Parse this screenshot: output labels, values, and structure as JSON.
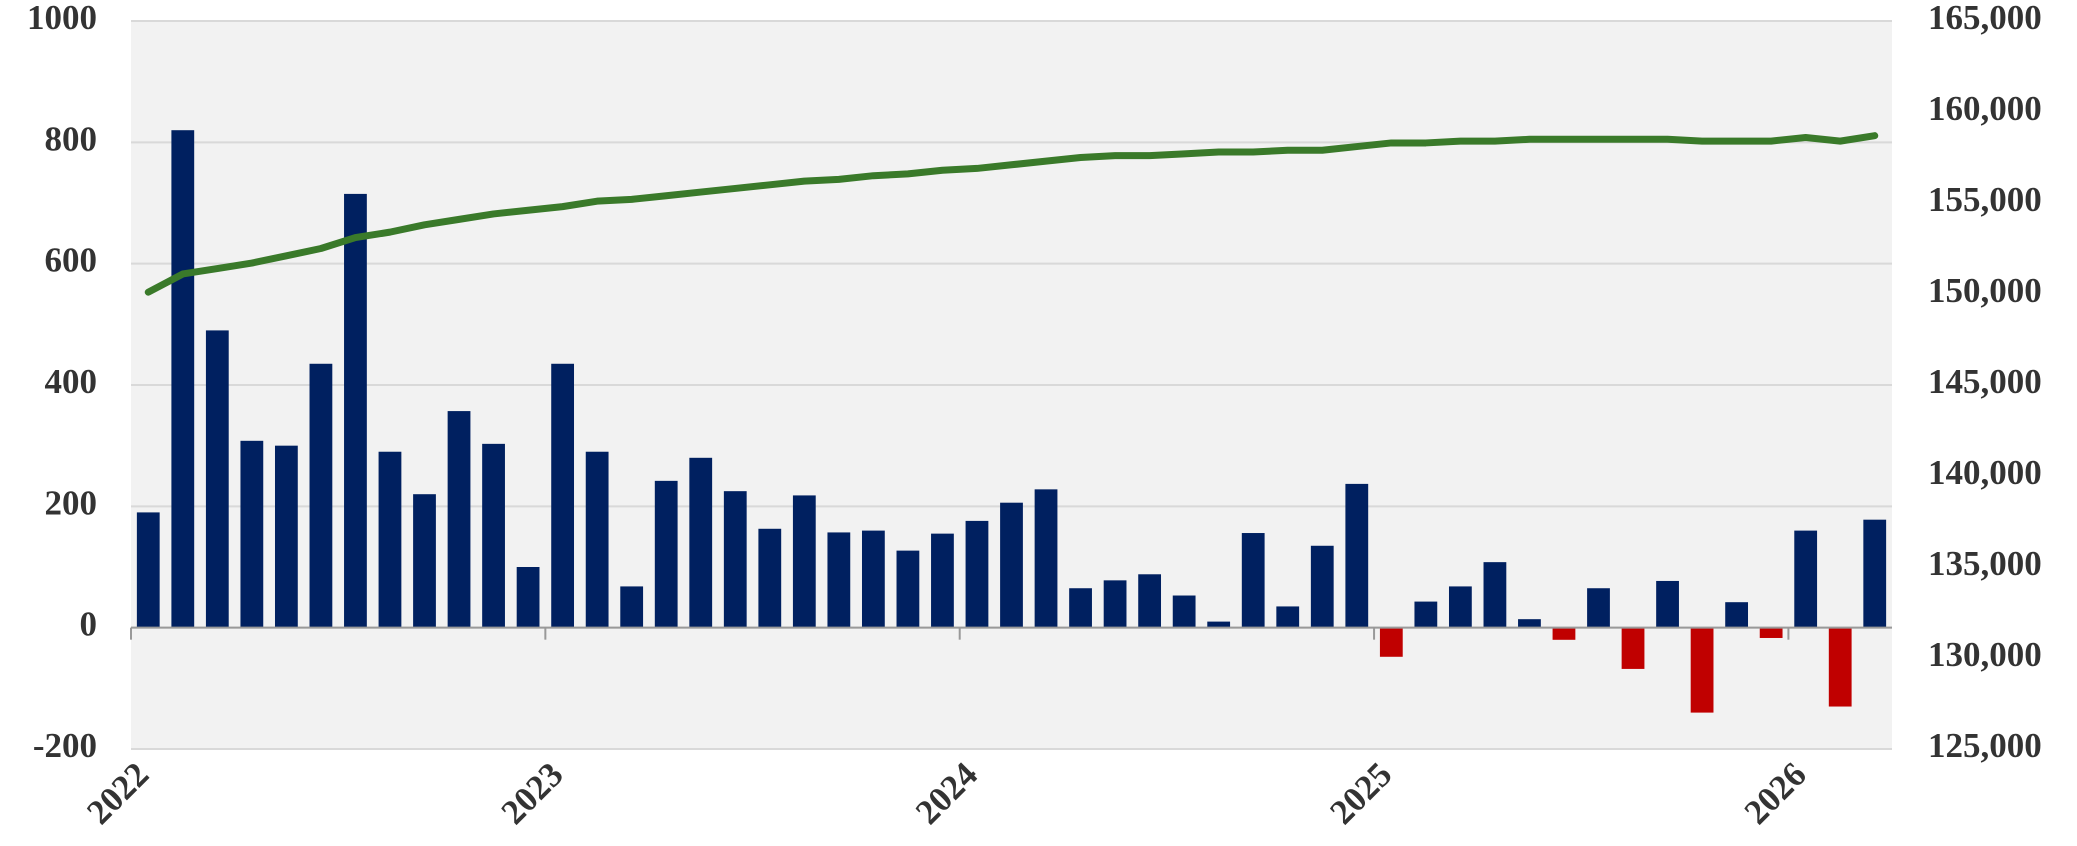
{
  "chart_data": {
    "type": "bar_line",
    "categories": [
      "2022",
      null,
      null,
      null,
      null,
      null,
      null,
      null,
      null,
      null,
      null,
      null,
      "2023",
      null,
      null,
      null,
      null,
      null,
      null,
      null,
      null,
      null,
      null,
      null,
      "2024",
      null,
      null,
      null,
      null,
      null,
      null,
      null,
      null,
      null,
      null,
      null,
      "2025",
      null,
      null,
      null,
      null,
      null,
      null,
      null,
      null,
      null,
      null,
      null,
      "2026",
      null,
      null
    ],
    "series": [
      {
        "type": "bar",
        "color": "#002060",
        "negative_color": "#c00000",
        "values": [
          190,
          820,
          490,
          308,
          300,
          435,
          715,
          290,
          220,
          357,
          303,
          100,
          435,
          290,
          68,
          242,
          280,
          225,
          163,
          218,
          157,
          160,
          127,
          155,
          176,
          206,
          228,
          65,
          78,
          88,
          53,
          10,
          156,
          35,
          135,
          237,
          -48,
          43,
          68,
          108,
          14,
          -20,
          65,
          -68,
          77,
          -140,
          42,
          -17,
          160,
          -130,
          178
        ]
      },
      {
        "type": "line",
        "axis": "y2",
        "color": "#3a7a2a",
        "values": [
          150100,
          151100,
          151400,
          151700,
          152100,
          152500,
          153100,
          153400,
          153800,
          154100,
          154400,
          154600,
          154800,
          155100,
          155200,
          155400,
          155600,
          155800,
          156000,
          156200,
          156300,
          156500,
          156600,
          156800,
          156900,
          157100,
          157300,
          157500,
          157600,
          157600,
          157700,
          157800,
          157800,
          157900,
          157900,
          158100,
          158300,
          158300,
          158400,
          158400,
          158500,
          158500,
          158500,
          158500,
          158500,
          158400,
          158400,
          158400,
          158600,
          158400,
          158700
        ]
      }
    ],
    "ylim": [
      -200,
      1000
    ],
    "yticks": [
      -200,
      0,
      200,
      400,
      600,
      800,
      1000
    ],
    "y2lim": [
      125000,
      165000
    ],
    "y2ticks": [
      {
        "value": 125000,
        "label": "125,000"
      },
      {
        "value": 130000,
        "label": "130,000"
      },
      {
        "value": 135000,
        "label": "135,000"
      },
      {
        "value": 140000,
        "label": "140,000"
      },
      {
        "value": 145000,
        "label": "145,000"
      },
      {
        "value": 150000,
        "label": "150,000"
      },
      {
        "value": 155000,
        "label": "155,000"
      },
      {
        "value": 160000,
        "label": "160,000"
      },
      {
        "value": 165000,
        "label": "165,000"
      }
    ],
    "grid": true
  }
}
